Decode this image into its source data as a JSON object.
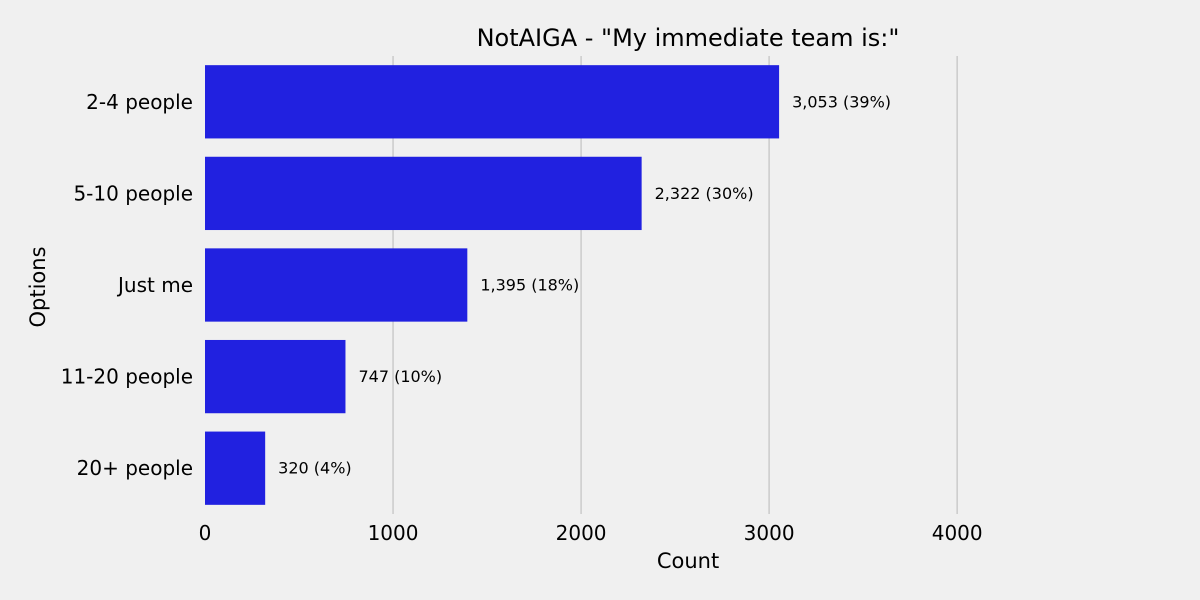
{
  "chart_data": {
    "type": "bar",
    "orientation": "horizontal",
    "title": "NotAIGA - \"My immediate team is:\"",
    "xlabel": "Count",
    "ylabel": "Options",
    "categories": [
      "2-4 people",
      "5-10 people",
      "Just me",
      "11-20 people",
      "20+ people"
    ],
    "values": [
      3053,
      2322,
      1395,
      747,
      320
    ],
    "data_labels": [
      "3,053 (39%)",
      "2,322 (30%)",
      "1,395 (18%)",
      "747 (10%)",
      "320 (4%)"
    ],
    "xlim": [
      0,
      4600
    ],
    "xticks": [
      0,
      1000,
      2000,
      3000,
      4000
    ],
    "xtick_labels": [
      "0",
      "1000",
      "2000",
      "3000",
      "4000"
    ],
    "grid": "vertical",
    "bar_color": "#2121e0",
    "background_color": "#f0f0f0",
    "grid_color": "#cbcbcb"
  }
}
